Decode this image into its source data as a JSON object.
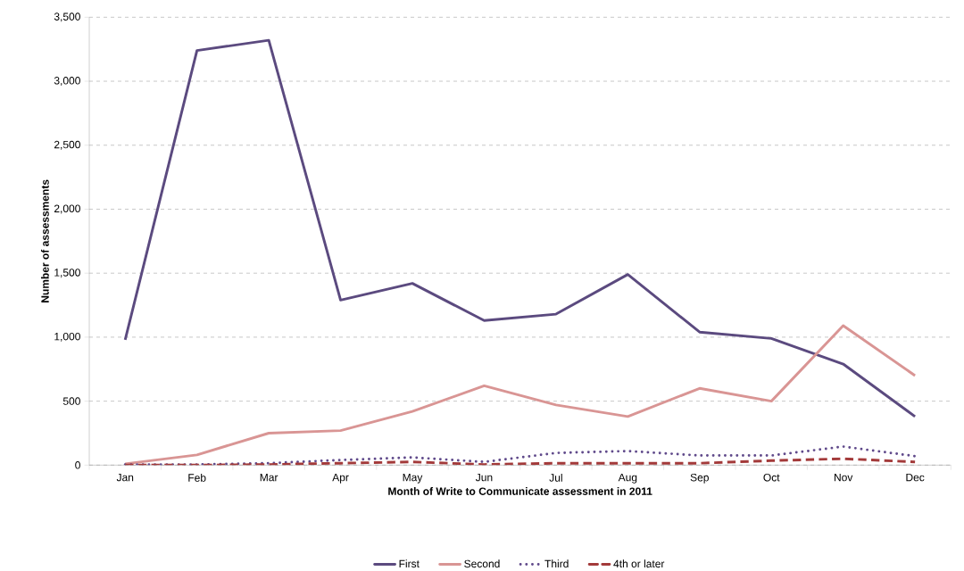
{
  "chart_data": {
    "type": "line",
    "xlabel": "Month of Write to Communicate assessment in 2011",
    "ylabel": "Number of assessments",
    "categories": [
      "Jan",
      "Feb",
      "Mar",
      "Apr",
      "May",
      "Jun",
      "Jul",
      "Aug",
      "Sep",
      "Oct",
      "Nov",
      "Dec"
    ],
    "series": [
      {
        "name": "First",
        "color": "#5b4a7f",
        "line_style": "solid",
        "values": [
          980,
          3240,
          3320,
          1290,
          1420,
          1130,
          1180,
          1490,
          1040,
          990,
          790,
          380
        ]
      },
      {
        "name": "Second",
        "color": "#d99594",
        "line_style": "solid",
        "values": [
          10,
          80,
          250,
          270,
          420,
          620,
          470,
          380,
          600,
          500,
          1090,
          700
        ]
      },
      {
        "name": "Third",
        "color": "#604a8b",
        "line_style": "dotted",
        "values": [
          5,
          5,
          15,
          40,
          60,
          25,
          95,
          110,
          75,
          75,
          145,
          70
        ]
      },
      {
        "name": "4th or later",
        "color": "#a33a3a",
        "line_style": "dashed",
        "values": [
          0,
          0,
          5,
          15,
          25,
          5,
          15,
          15,
          15,
          35,
          50,
          25
        ]
      }
    ],
    "ylim": [
      0,
      3500
    ],
    "yticks": [
      {
        "value": 0,
        "label": "0"
      },
      {
        "value": 500,
        "label": "500"
      },
      {
        "value": 1000,
        "label": "1,000"
      },
      {
        "value": 1500,
        "label": "1,500"
      },
      {
        "value": 2000,
        "label": "2,000"
      },
      {
        "value": 2500,
        "label": "2,500"
      },
      {
        "value": 3000,
        "label": "3,000"
      },
      {
        "value": 3500,
        "label": "3,500"
      }
    ],
    "grid": "y",
    "legend": "bottom",
    "marker": "none"
  }
}
